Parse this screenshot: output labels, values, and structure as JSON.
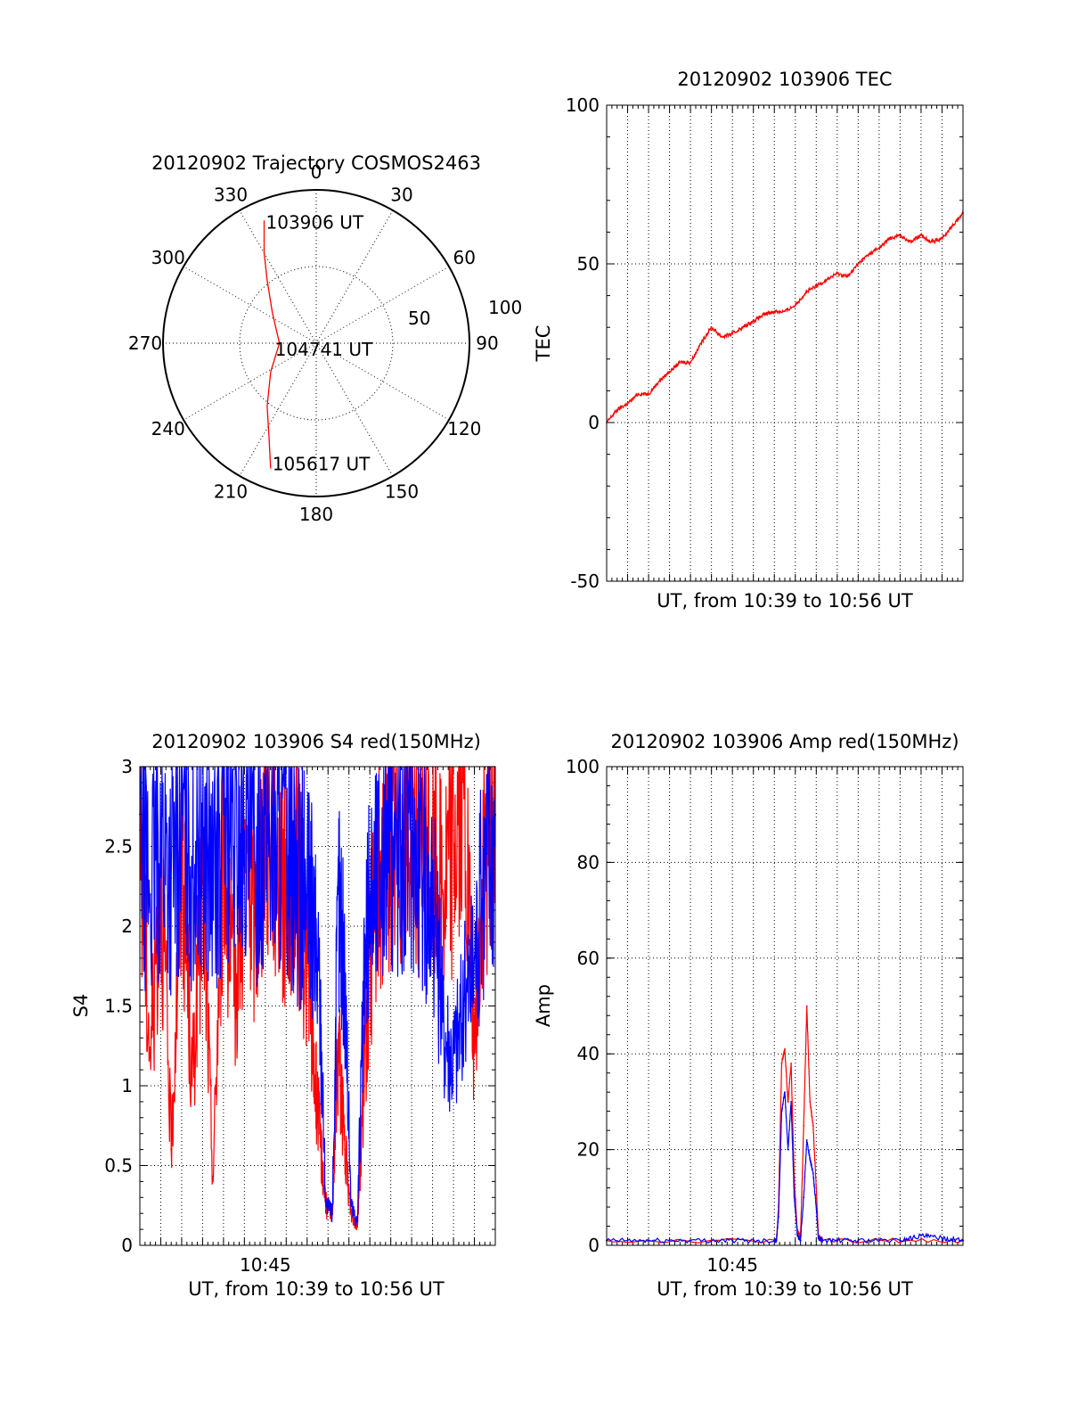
{
  "colors": {
    "red": "#ff0000",
    "blue": "#0000ff"
  },
  "chart_data": [
    {
      "type": "polar",
      "title": "20120902 Trajectory COSMOS2463",
      "angle_ticks": [
        "0",
        "30",
        "60",
        "90",
        "120",
        "150",
        "180",
        "210",
        "240",
        "270",
        "300",
        "330"
      ],
      "radial_ticks": [
        "50",
        "100"
      ],
      "radial_range": [
        0,
        100
      ],
      "trajectory": {
        "color": "red",
        "labels": {
          "start": "103906 UT",
          "middle": "104741 UT",
          "end": "105617 UT"
        },
        "points": [
          [
            337,
            87
          ],
          [
            330,
            68
          ],
          [
            322,
            52
          ],
          [
            305,
            35
          ],
          [
            270,
            24
          ],
          [
            238,
            35
          ],
          [
            218,
            52
          ],
          [
            207,
            68
          ],
          [
            200,
            87
          ]
        ]
      }
    },
    {
      "type": "line",
      "title": "20120902 103906 TEC",
      "ylabel": "TEC",
      "xlabel": "UT, from 10:39 to 10:56 UT",
      "ylim": [
        -50,
        100
      ],
      "yticks": [
        "100",
        "50",
        "0",
        "-50"
      ],
      "xlim": [
        0,
        17
      ],
      "grid": true,
      "series": [
        {
          "color": "red",
          "x": [
            0,
            0.5,
            1,
            1.5,
            2,
            2.5,
            3,
            3.5,
            4,
            4.5,
            5,
            5.5,
            6,
            6.5,
            7,
            7.5,
            8,
            8.5,
            9,
            9.5,
            10,
            10.5,
            11,
            11.5,
            12,
            12.5,
            13,
            13.5,
            14,
            14.5,
            15,
            15.5,
            16,
            16.5,
            17
          ],
          "values": [
            0,
            4,
            6,
            9,
            9,
            13,
            16,
            19,
            19,
            25,
            30,
            27,
            28,
            30,
            32,
            34,
            35,
            35,
            37,
            41,
            43,
            45,
            47,
            46,
            50,
            53,
            55,
            58,
            59,
            57,
            59,
            57,
            58,
            62,
            66
          ]
        }
      ]
    },
    {
      "type": "line",
      "title": "20120902 103906 S4 red(150MHz)",
      "ylabel": "S4",
      "xlabel": "UT, from 10:39 to 10:56 UT",
      "ylim": [
        0,
        3
      ],
      "yticks": [
        "3",
        "2.5",
        "2",
        "1.5",
        "1",
        "0.5",
        "0"
      ],
      "xlim": [
        0,
        17
      ],
      "xticks": [
        {
          "value": 6,
          "label": "10:45"
        }
      ],
      "grid": true,
      "series": [
        {
          "color": "red",
          "x": [
            0,
            0.5,
            1,
            1.5,
            2,
            2.5,
            3,
            3.5,
            4,
            4.5,
            5,
            5.5,
            6,
            6.5,
            7,
            7.5,
            8,
            8.3,
            8.6,
            8.9,
            9.2,
            9.5,
            9.8,
            10.1,
            10.4,
            10.7,
            11,
            11.5,
            12,
            12.5,
            13,
            13.5,
            14,
            14.5,
            15,
            15.5,
            16,
            16.5,
            17
          ],
          "values": [
            2.6,
            1.2,
            2.4,
            0.6,
            2.5,
            1.0,
            2.3,
            0.4,
            2.6,
            1.5,
            2.4,
            2.0,
            2.7,
            2.5,
            2.2,
            2.3,
            1.8,
            1.2,
            0.7,
            0.25,
            0.2,
            1.3,
            0.6,
            0.2,
            0.12,
            1.0,
            1.8,
            2.4,
            2.5,
            2.6,
            2.7,
            2.5,
            2.4,
            2.2,
            2.6,
            2.8,
            1.2,
            2.5,
            2.7
          ]
        },
        {
          "color": "blue",
          "x": [
            0,
            0.5,
            1,
            1.5,
            2,
            2.5,
            3,
            3.5,
            4,
            4.5,
            5,
            5.5,
            6,
            6.5,
            7,
            7.5,
            8,
            8.3,
            8.6,
            8.9,
            9.2,
            9.5,
            9.8,
            10.1,
            10.4,
            10.7,
            11,
            11.5,
            12,
            12.5,
            13,
            13.5,
            14,
            14.5,
            15,
            15.5,
            16,
            16.5,
            17
          ],
          "values": [
            2.7,
            2.2,
            2.6,
            2.3,
            2.7,
            2.4,
            2.6,
            2.2,
            2.7,
            2.5,
            2.6,
            2.4,
            2.7,
            2.5,
            2.6,
            2.3,
            2.2,
            2.0,
            1.6,
            0.25,
            0.2,
            2.2,
            1.7,
            0.25,
            0.15,
            1.5,
            2.2,
            2.4,
            2.6,
            2.5,
            2.6,
            2.3,
            2.2,
            1.4,
            1.2,
            1.5,
            1.8,
            2.4,
            2.7
          ]
        }
      ]
    },
    {
      "type": "line",
      "title": "20120902 103906 Amp red(150MHz)",
      "ylabel": "Amp",
      "xlabel": "UT, from 10:39 to 10:56 UT",
      "ylim": [
        0,
        100
      ],
      "yticks": [
        "100",
        "80",
        "60",
        "40",
        "20",
        "0"
      ],
      "xlim": [
        0,
        17
      ],
      "xticks": [
        {
          "value": 6,
          "label": "10:45"
        }
      ],
      "grid": true,
      "series": [
        {
          "color": "red",
          "x": [
            0,
            8.1,
            8.2,
            8.35,
            8.5,
            8.65,
            8.8,
            8.95,
            9.1,
            9.25,
            9.4,
            9.55,
            9.7,
            9.85,
            10,
            10.1,
            10.3,
            17
          ],
          "values": [
            1,
            1,
            8,
            38,
            41,
            30,
            38,
            14,
            3,
            2,
            25,
            50,
            30,
            25,
            12,
            2,
            1,
            1
          ]
        },
        {
          "color": "blue",
          "x": [
            0,
            2,
            4,
            6,
            8,
            8.1,
            8.2,
            8.35,
            8.5,
            8.65,
            8.8,
            8.95,
            9.1,
            9.25,
            9.4,
            9.55,
            9.7,
            9.85,
            10,
            10.1,
            10.3,
            12,
            14,
            15,
            16,
            17
          ],
          "values": [
            1,
            1,
            1,
            1,
            1,
            1,
            6,
            28,
            32,
            20,
            30,
            10,
            2,
            1,
            10,
            22,
            18,
            15,
            8,
            1.5,
            1,
            1,
            1,
            2,
            1.5,
            1
          ]
        }
      ]
    }
  ]
}
